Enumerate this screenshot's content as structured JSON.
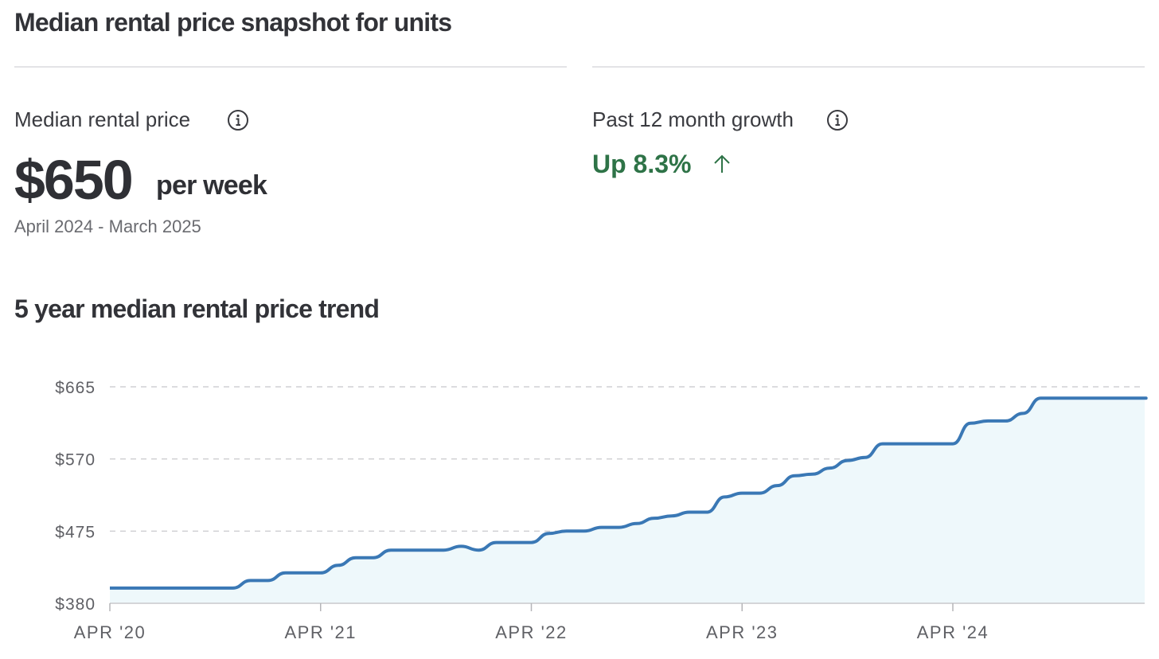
{
  "header": {
    "title": "Median rental price snapshot for units"
  },
  "median": {
    "label": "Median rental price",
    "value": "$650",
    "unit": "per week",
    "period": "April 2024 - March 2025",
    "info_icon": "info-icon"
  },
  "growth": {
    "label": "Past 12 month growth",
    "value": "Up 8.3%",
    "direction_icon": "arrow-up-icon",
    "info_icon": "info-icon",
    "color": "#2e7347"
  },
  "trend": {
    "title": "5 year median rental price trend"
  },
  "chart_data": {
    "type": "area",
    "title": "5 year median rental price trend",
    "xlabel": "",
    "ylabel": "",
    "ylim": [
      380,
      665
    ],
    "y_ticks": [
      "$665",
      "$570",
      "$475",
      "$380"
    ],
    "y_tick_values": [
      665,
      570,
      475,
      380
    ],
    "x_ticks": [
      "APR '20",
      "APR '21",
      "APR '22",
      "APR '23",
      "APR '24"
    ],
    "x_tick_values": [
      "2020-04",
      "2021-04",
      "2022-04",
      "2023-04",
      "2024-04"
    ],
    "grid": "horizontal dashed",
    "colors": {
      "line": "#3a78b5",
      "fill": "#eef8fb",
      "grid": "#d0d0d3"
    },
    "series": [
      {
        "x": [
          "2020-04",
          "2020-05",
          "2020-06",
          "2020-07",
          "2020-08",
          "2020-09",
          "2020-10",
          "2020-11",
          "2020-12",
          "2021-01",
          "2021-02",
          "2021-03",
          "2021-04",
          "2021-05",
          "2021-06",
          "2021-07",
          "2021-08",
          "2021-09",
          "2021-10",
          "2021-11",
          "2021-12",
          "2022-01",
          "2022-02",
          "2022-03",
          "2022-04",
          "2022-05",
          "2022-06",
          "2022-07",
          "2022-08",
          "2022-09",
          "2022-10",
          "2022-11",
          "2022-12",
          "2023-01",
          "2023-02",
          "2023-03",
          "2023-04",
          "2023-05",
          "2023-06",
          "2023-07",
          "2023-08",
          "2023-09",
          "2023-10",
          "2023-11",
          "2023-12",
          "2024-01",
          "2024-02",
          "2024-03",
          "2024-04",
          "2024-05",
          "2024-06",
          "2024-07",
          "2024-08",
          "2024-09",
          "2024-10",
          "2024-11",
          "2024-12",
          "2025-01",
          "2025-02",
          "2025-03"
        ],
        "values": [
          400,
          400,
          400,
          400,
          400,
          400,
          400,
          400,
          410,
          410,
          420,
          420,
          420,
          430,
          440,
          440,
          450,
          450,
          450,
          450,
          455,
          450,
          460,
          460,
          460,
          472,
          475,
          475,
          480,
          480,
          485,
          492,
          495,
          500,
          500,
          520,
          525,
          525,
          535,
          548,
          550,
          558,
          568,
          572,
          590,
          590,
          590,
          590,
          590,
          617,
          620,
          620,
          630,
          650,
          650,
          650,
          650,
          650,
          650,
          650
        ]
      }
    ]
  }
}
